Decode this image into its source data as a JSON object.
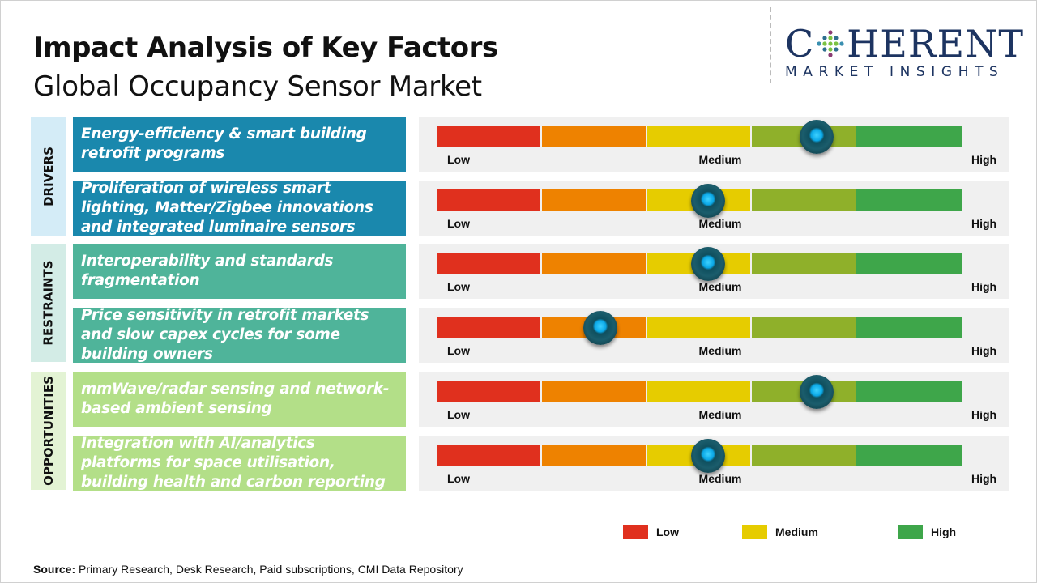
{
  "header": {
    "title": "Impact Analysis of Key Factors",
    "subtitle": "Global Occupancy Sensor Market"
  },
  "logo": {
    "main_before": "C",
    "main_after": "HERENT",
    "sub": "MARKET INSIGHTS",
    "color": "#1d3461"
  },
  "scale": {
    "labels": [
      "Low",
      "Medium",
      "High"
    ],
    "segment_colors": [
      "#e0301e",
      "#ee8200",
      "#e6cc00",
      "#8fb02a",
      "#3ea64a"
    ]
  },
  "categories": [
    {
      "label": "DRIVERS",
      "bg": "#d4ecf7",
      "box_color": "#1a88ad"
    },
    {
      "label": "RESTRAINTS",
      "bg": "#d3ece6",
      "box_color": "#4fb49a"
    },
    {
      "label": "OPPORTUNITIES",
      "bg": "#e3f3d4",
      "box_color": "#b3df88"
    }
  ],
  "factors": [
    {
      "category": 0,
      "text": "Energy-efficiency & smart building retrofit programs",
      "impact": 0.724
    },
    {
      "category": 0,
      "text": "Proliferation of wireless smart lighting, Matter/Zigbee innovations and integrated luminaire sensors",
      "impact": 0.517
    },
    {
      "category": 1,
      "text": "Interoperability and standards fragmentation",
      "impact": 0.517
    },
    {
      "category": 1,
      "text": "Price sensitivity in retrofit markets and slow capex cycles for some building owners",
      "impact": 0.312
    },
    {
      "category": 2,
      "text": "mmWave/radar sensing and network-based ambient sensing",
      "impact": 0.724
    },
    {
      "category": 2,
      "text": "Integration with AI/analytics platforms for space utilisation, building health and carbon reporting",
      "impact": 0.517
    }
  ],
  "legend": [
    {
      "label": "Low",
      "color": "#e0301e"
    },
    {
      "label": "Medium",
      "color": "#e6cc00"
    },
    {
      "label": "High",
      "color": "#3ea64a"
    }
  ],
  "source": {
    "label": "Source:",
    "text": " Primary Research, Desk Research, Paid subscriptions, CMI Data Repository"
  }
}
